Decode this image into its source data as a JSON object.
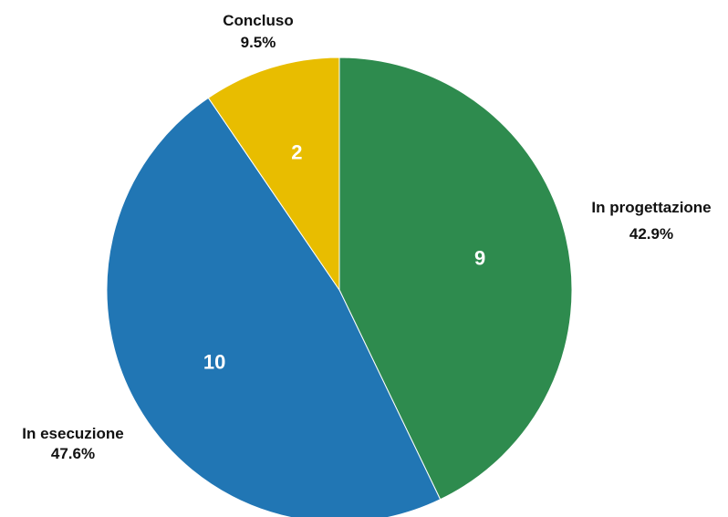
{
  "chart_data": {
    "type": "pie",
    "title": "",
    "start_angle_deg": 0,
    "direction": "clockwise",
    "legend": "none",
    "slices": [
      {
        "label": "In progettazione",
        "value": 9,
        "percent_label": "42.9%",
        "color": "#2e8b4e"
      },
      {
        "label": "In esecuzione",
        "value": 10,
        "percent_label": "47.6%",
        "color": "#2176b4"
      },
      {
        "label": "Concluso",
        "value": 2,
        "percent_label": "9.5%",
        "color": "#e8bd00"
      }
    ]
  }
}
